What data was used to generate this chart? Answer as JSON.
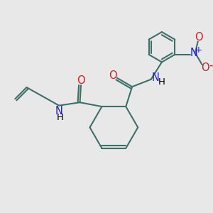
{
  "bg_color": "#e8e8e8",
  "bond_color": "#3d7068",
  "bond_width": 1.5,
  "N_color": "#2020cc",
  "O_color": "#cc2020",
  "label_fontsize": 9.5,
  "fig_width": 3.0,
  "fig_height": 3.0,
  "dpi": 100,
  "xlim": [
    0,
    10
  ],
  "ylim": [
    0,
    10
  ]
}
